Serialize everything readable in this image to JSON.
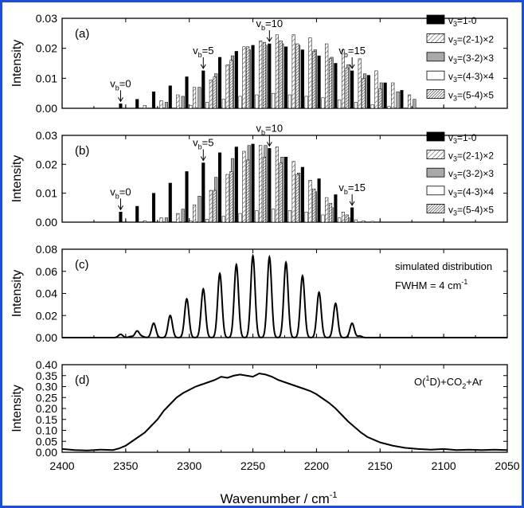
{
  "figure": {
    "xlabel": "Wavenumber / cm",
    "xlabel_sup": "-1",
    "x_ticks": [
      "2400",
      "2350",
      "2300",
      "2250",
      "2200",
      "2150",
      "2100",
      "2050"
    ],
    "ylabel": "Intensity",
    "frame_color": "#1a4fd6"
  },
  "chart_data": [
    {
      "type": "bar",
      "panel_label": "(a)",
      "xlim": [
        2400,
        2050
      ],
      "ylim": [
        0,
        0.03
      ],
      "y_ticks": [
        "0.00",
        "0.01",
        "0.02",
        "0.03"
      ],
      "ylabel": "Intensity",
      "legend_placement": "right",
      "series": [
        {
          "name": "v3=1-0",
          "fill": "solid-black",
          "x": [
            2354,
            2341,
            2328,
            2315,
            2302,
            2289,
            2276,
            2263,
            2250,
            2237,
            2224,
            2211,
            2198,
            2185,
            2172,
            2159,
            2146,
            2133
          ],
          "values": [
            0.0015,
            0.003,
            0.0055,
            0.0075,
            0.0105,
            0.0125,
            0.017,
            0.019,
            0.021,
            0.0215,
            0.0205,
            0.0195,
            0.0175,
            0.015,
            0.0125,
            0.011,
            0.0085,
            0.006
          ]
        },
        {
          "name": "v3=(2-1)×2",
          "fill": "light-hatch",
          "x": [
            2335,
            2322,
            2309,
            2296,
            2283,
            2270,
            2257,
            2244,
            2231,
            2218,
            2205,
            2192,
            2179,
            2166,
            2153,
            2140,
            2127
          ],
          "values": [
            0.001,
            0.0025,
            0.0045,
            0.007,
            0.0095,
            0.0145,
            0.0205,
            0.0225,
            0.0245,
            0.0245,
            0.0235,
            0.0215,
            0.0195,
            0.0165,
            0.0125,
            0.0085,
            0.0045
          ]
        },
        {
          "name": "v3=(3-2)×3",
          "fill": "gray",
          "x": [
            2318,
            2305,
            2292,
            2279,
            2266,
            2253,
            2240,
            2227,
            2214,
            2201,
            2188,
            2175,
            2162,
            2149,
            2136,
            2123
          ],
          "values": [
            0.002,
            0.004,
            0.007,
            0.0115,
            0.0175,
            0.0195,
            0.021,
            0.0215,
            0.021,
            0.0195,
            0.017,
            0.0145,
            0.0115,
            0.0085,
            0.0055,
            0.003
          ]
        },
        {
          "name": "v3=(4-3)×4",
          "fill": "white",
          "x": [
            2299,
            2286,
            2273,
            2260,
            2247,
            2234,
            2221,
            2208,
            2195,
            2182,
            2169,
            2156,
            2143
          ],
          "values": [
            0.001,
            0.002,
            0.003,
            0.004,
            0.0045,
            0.005,
            0.0045,
            0.004,
            0.0035,
            0.0028,
            0.002,
            0.0012,
            0.0006
          ]
        },
        {
          "name": "v3=(5-4)×5",
          "fill": "dense-hatch",
          "x": [
            2280,
            2267,
            2254,
            2241,
            2228,
            2215,
            2202,
            2189,
            2176,
            2163,
            2150
          ],
          "values": [
            0.0105,
            0.016,
            0.0205,
            0.022,
            0.0225,
            0.0215,
            0.019,
            0.0165,
            0.0135,
            0.01,
            0.0065
          ]
        }
      ],
      "annotations": [
        {
          "label": "v",
          "sub": "b",
          "rest": "=0",
          "x": 2354,
          "y": 0.0015
        },
        {
          "label": "v",
          "sub": "b",
          "rest": "=5",
          "x": 2289,
          "y": 0.0125
        },
        {
          "label": "v",
          "sub": "b",
          "rest": "=10",
          "x": 2237,
          "y": 0.0215
        },
        {
          "label": "v",
          "sub": "b",
          "rest": "=15",
          "x": 2172,
          "y": 0.0125
        }
      ]
    },
    {
      "type": "bar",
      "panel_label": "(b)",
      "xlim": [
        2400,
        2050
      ],
      "ylim": [
        0,
        0.03
      ],
      "y_ticks": [
        "0.00",
        "0.01",
        "0.02",
        "0.03"
      ],
      "ylabel": "Intensity",
      "legend_placement": "right",
      "series": [
        {
          "name": "v3=1-0",
          "fill": "solid-black",
          "x": [
            2354,
            2341,
            2328,
            2315,
            2302,
            2289,
            2276,
            2263,
            2250,
            2237,
            2224,
            2211,
            2198,
            2185,
            2172
          ],
          "values": [
            0.0035,
            0.0055,
            0.01,
            0.0135,
            0.0175,
            0.0205,
            0.024,
            0.026,
            0.027,
            0.0255,
            0.0225,
            0.019,
            0.015,
            0.0095,
            0.005
          ]
        },
        {
          "name": "v3=(2-1)×2",
          "fill": "light-hatch",
          "x": [
            2335,
            2322,
            2309,
            2296,
            2283,
            2270,
            2257,
            2244,
            2231,
            2218,
            2205,
            2192,
            2179
          ],
          "values": [
            0.0005,
            0.0015,
            0.003,
            0.006,
            0.011,
            0.0165,
            0.0245,
            0.0265,
            0.026,
            0.021,
            0.0145,
            0.0085,
            0.0035
          ]
        },
        {
          "name": "v3=(3-2)×3",
          "fill": "gray",
          "x": [
            2318,
            2305,
            2292,
            2279,
            2266,
            2253,
            2240,
            2227,
            2214,
            2201,
            2188,
            2175
          ],
          "values": [
            0.0015,
            0.0045,
            0.009,
            0.0155,
            0.022,
            0.0265,
            0.0265,
            0.0225,
            0.017,
            0.0105,
            0.005,
            0.0015
          ]
        },
        {
          "name": "v3=(4-3)×4",
          "fill": "white",
          "x": [
            2299,
            2286,
            2273,
            2260,
            2247,
            2234,
            2221,
            2208,
            2195,
            2182,
            2169,
            2156
          ],
          "values": [
            0.0004,
            0.001,
            0.002,
            0.003,
            0.004,
            0.0045,
            0.004,
            0.0035,
            0.0025,
            0.0015,
            0.0008,
            0.0003
          ]
        },
        {
          "name": "v3=(5-4)×5",
          "fill": "dense-hatch",
          "x": [
            2280,
            2267,
            2254,
            2241,
            2228,
            2215,
            2202,
            2189,
            2176,
            2163
          ],
          "values": [
            0.011,
            0.0175,
            0.0215,
            0.0225,
            0.0205,
            0.0165,
            0.0115,
            0.0065,
            0.0025,
            0.0005
          ]
        }
      ],
      "annotations": [
        {
          "label": "v",
          "sub": "b",
          "rest": "=0",
          "x": 2354,
          "y": 0.0035
        },
        {
          "label": "v",
          "sub": "b",
          "rest": "=5",
          "x": 2289,
          "y": 0.0205
        },
        {
          "label": "v",
          "sub": "b",
          "rest": "=10",
          "x": 2237,
          "y": 0.0255
        },
        {
          "label": "v",
          "sub": "b",
          "rest": "=15",
          "x": 2172,
          "y": 0.005
        }
      ]
    },
    {
      "type": "line",
      "panel_label": "(c)",
      "xlim": [
        2400,
        2050
      ],
      "ylim": [
        0,
        0.08
      ],
      "y_ticks": [
        "0.00",
        "0.02",
        "0.04",
        "0.06",
        "0.08"
      ],
      "ylabel": "Intensity",
      "text_note": "simulated distribution",
      "text_note2": "FWHM = 4 cm",
      "text_note2_sup": "-1",
      "peak_fwhm": 4,
      "peaks": {
        "x": [
          2354,
          2341,
          2328,
          2315,
          2302,
          2289,
          2276,
          2263,
          2250,
          2237,
          2224,
          2211,
          2198,
          2185,
          2172
        ],
        "values": [
          0.003,
          0.006,
          0.013,
          0.02,
          0.035,
          0.044,
          0.058,
          0.066,
          0.074,
          0.073,
          0.068,
          0.056,
          0.041,
          0.031,
          0.013
        ]
      },
      "minor_peaks": {
        "x": [
          2346,
          2337,
          2166
        ],
        "values": [
          0.001,
          0.001,
          0.0015
        ]
      }
    },
    {
      "type": "line",
      "panel_label": "(d)",
      "xlim": [
        2400,
        2050
      ],
      "ylim": [
        0,
        0.4
      ],
      "y_ticks": [
        "0.00",
        "0.05",
        "0.10",
        "0.15",
        "0.20",
        "0.25",
        "0.30",
        "0.35",
        "0.40"
      ],
      "ylabel": "Intensity",
      "text_note": "O(",
      "text_note_sup": "1",
      "text_note_mid": "D)+CO",
      "text_note_sub": "2",
      "text_note_end": "+Ar",
      "series": [
        {
          "x": [
            2400,
            2390,
            2380,
            2370,
            2360,
            2355,
            2350,
            2345,
            2340,
            2335,
            2330,
            2325,
            2320,
            2315,
            2310,
            2305,
            2300,
            2295,
            2290,
            2285,
            2280,
            2275,
            2270,
            2265,
            2260,
            2255,
            2250,
            2245,
            2240,
            2235,
            2230,
            2225,
            2220,
            2215,
            2210,
            2205,
            2200,
            2195,
            2190,
            2185,
            2180,
            2175,
            2170,
            2165,
            2160,
            2150,
            2140,
            2130,
            2120,
            2110,
            2100,
            2090,
            2080,
            2070,
            2060,
            2050
          ],
          "values": [
            0.015,
            0.01,
            0.008,
            0.012,
            0.01,
            0.018,
            0.03,
            0.05,
            0.07,
            0.09,
            0.12,
            0.15,
            0.19,
            0.22,
            0.25,
            0.27,
            0.285,
            0.3,
            0.31,
            0.32,
            0.33,
            0.345,
            0.34,
            0.35,
            0.355,
            0.35,
            0.345,
            0.36,
            0.355,
            0.345,
            0.33,
            0.32,
            0.31,
            0.3,
            0.29,
            0.28,
            0.265,
            0.245,
            0.225,
            0.2,
            0.17,
            0.14,
            0.115,
            0.09,
            0.07,
            0.045,
            0.03,
            0.02,
            0.015,
            0.012,
            0.015,
            0.01,
            0.012,
            0.01,
            0.012,
            0.01
          ]
        }
      ]
    }
  ]
}
